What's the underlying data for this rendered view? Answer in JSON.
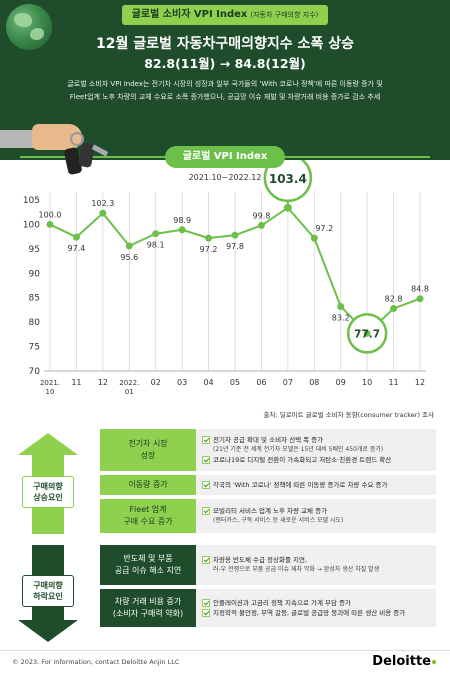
{
  "header": {
    "tag_main": "글로벌 소비자 VPI Index",
    "tag_sub": "(자동차 구매의향 지수)",
    "title": "12월 글로벌 자동차구매의향지수 소폭 상승",
    "subtitle": "82.8(11월) → 84.8(12월)",
    "desc_line1": "글로벌 소비자 VPI Index는 전기차 시장의 성장과 일부 국가들의 'With 코로나 정책'에 따른 이동량 증가 및",
    "desc_line2": "Fleet업계 노후 차량의 교체 수요로 소폭 증가했으나, 공급망 이슈 재발 및 차량거래 비용 증가로 감소 추세"
  },
  "chart_data": {
    "type": "line",
    "title": "글로벌 VPI Index",
    "period": "2021.10~2022.12",
    "categories": [
      "2021.10",
      "11",
      "12",
      "2022.01",
      "02",
      "03",
      "04",
      "05",
      "06",
      "07",
      "08",
      "09",
      "10",
      "11",
      "12"
    ],
    "x_tick_labels": [
      [
        "2021.",
        "10"
      ],
      [
        "11"
      ],
      [
        "12"
      ],
      [
        "2022.",
        "01"
      ],
      [
        "02"
      ],
      [
        "03"
      ],
      [
        "04"
      ],
      [
        "05"
      ],
      [
        "06"
      ],
      [
        "07"
      ],
      [
        "08"
      ],
      [
        "09"
      ],
      [
        "10"
      ],
      [
        "11"
      ],
      [
        "12"
      ]
    ],
    "values": [
      100.0,
      97.4,
      102.3,
      95.6,
      98.1,
      98.9,
      97.2,
      97.8,
      99.8,
      103.4,
      97.2,
      83.2,
      77.7,
      82.8,
      84.8
    ],
    "labels": [
      "100.0",
      "97.4",
      "102.3",
      "95.6",
      "98.1",
      "98.9",
      "97.2",
      "97.8",
      "99.8",
      "103.4",
      "97.2",
      "83.2",
      "77.7",
      "82.8",
      "84.8"
    ],
    "highlight": {
      "max_index": 9,
      "min_index": 12
    },
    "ylim": [
      70,
      105
    ],
    "yticks": [
      70,
      75,
      80,
      85,
      90,
      95,
      100,
      105
    ],
    "grid": "vertical",
    "source": "출처: 딜로이트 글로벌 소비자 동향(consumer tracker) 조사",
    "colors": {
      "line": "#6cc04a",
      "marker": "#6cc04a",
      "dark": "#1f4d2c"
    }
  },
  "factors": {
    "up_label": "구매의향\n상승요인",
    "down_label": "구매의향\n하락요인",
    "items": [
      {
        "category": "전기차 시장\n성장",
        "details": [
          {
            "text": "전기차 공급 확대 및 소비자 선택 폭 증가"
          },
          {
            "text": "(21년 기준 전 세계 전기차 모델은 15년 대비 5배인 450개로 증가)",
            "sub": true
          },
          {
            "text": "코로나19로 디지털 전환이 가속화되고 저탄소·친환경 트렌드 확산"
          }
        ]
      },
      {
        "category": "이동량 증가",
        "details": [
          {
            "text": "각국의 'With 코로나' 정책에 따른 이동량 증가로 차량 수요 증가"
          }
        ]
      },
      {
        "category": "Fleet 업계\n구매 수요 증가",
        "details": [
          {
            "text": "모빌리티 서비스 업계 노후 차량 교체 증가"
          },
          {
            "text": "(렌터카스, 구독 서비스 등 새로운 서비스 모델 시도)",
            "sub": true
          }
        ]
      },
      {
        "category": "반도체 및 부품\n공급 이슈 해소 지연",
        "details": [
          {
            "text": "차량용 반도체 수급 정상화를 지연,"
          },
          {
            "text": "러-우 전쟁으로 부품 공급 이슈 재차 악화 → 완성차 생산 차질 발생",
            "sub": true
          }
        ]
      },
      {
        "category": "차량 거래 비용 증가\n(소비자 구매력 약화)",
        "details": [
          {
            "text": "인플레이션과 고금리 정책 지속으로 가계 부담 증가"
          },
          {
            "text": "지정학적 불안정, 무역 갈등, 글로벌 공급망 붕괴에 따른 생산 비용 증가"
          }
        ]
      }
    ]
  },
  "footer": {
    "copyright": "© 2023. For information, contact Deloitte Anjin LLC",
    "logo": "Deloitte"
  }
}
